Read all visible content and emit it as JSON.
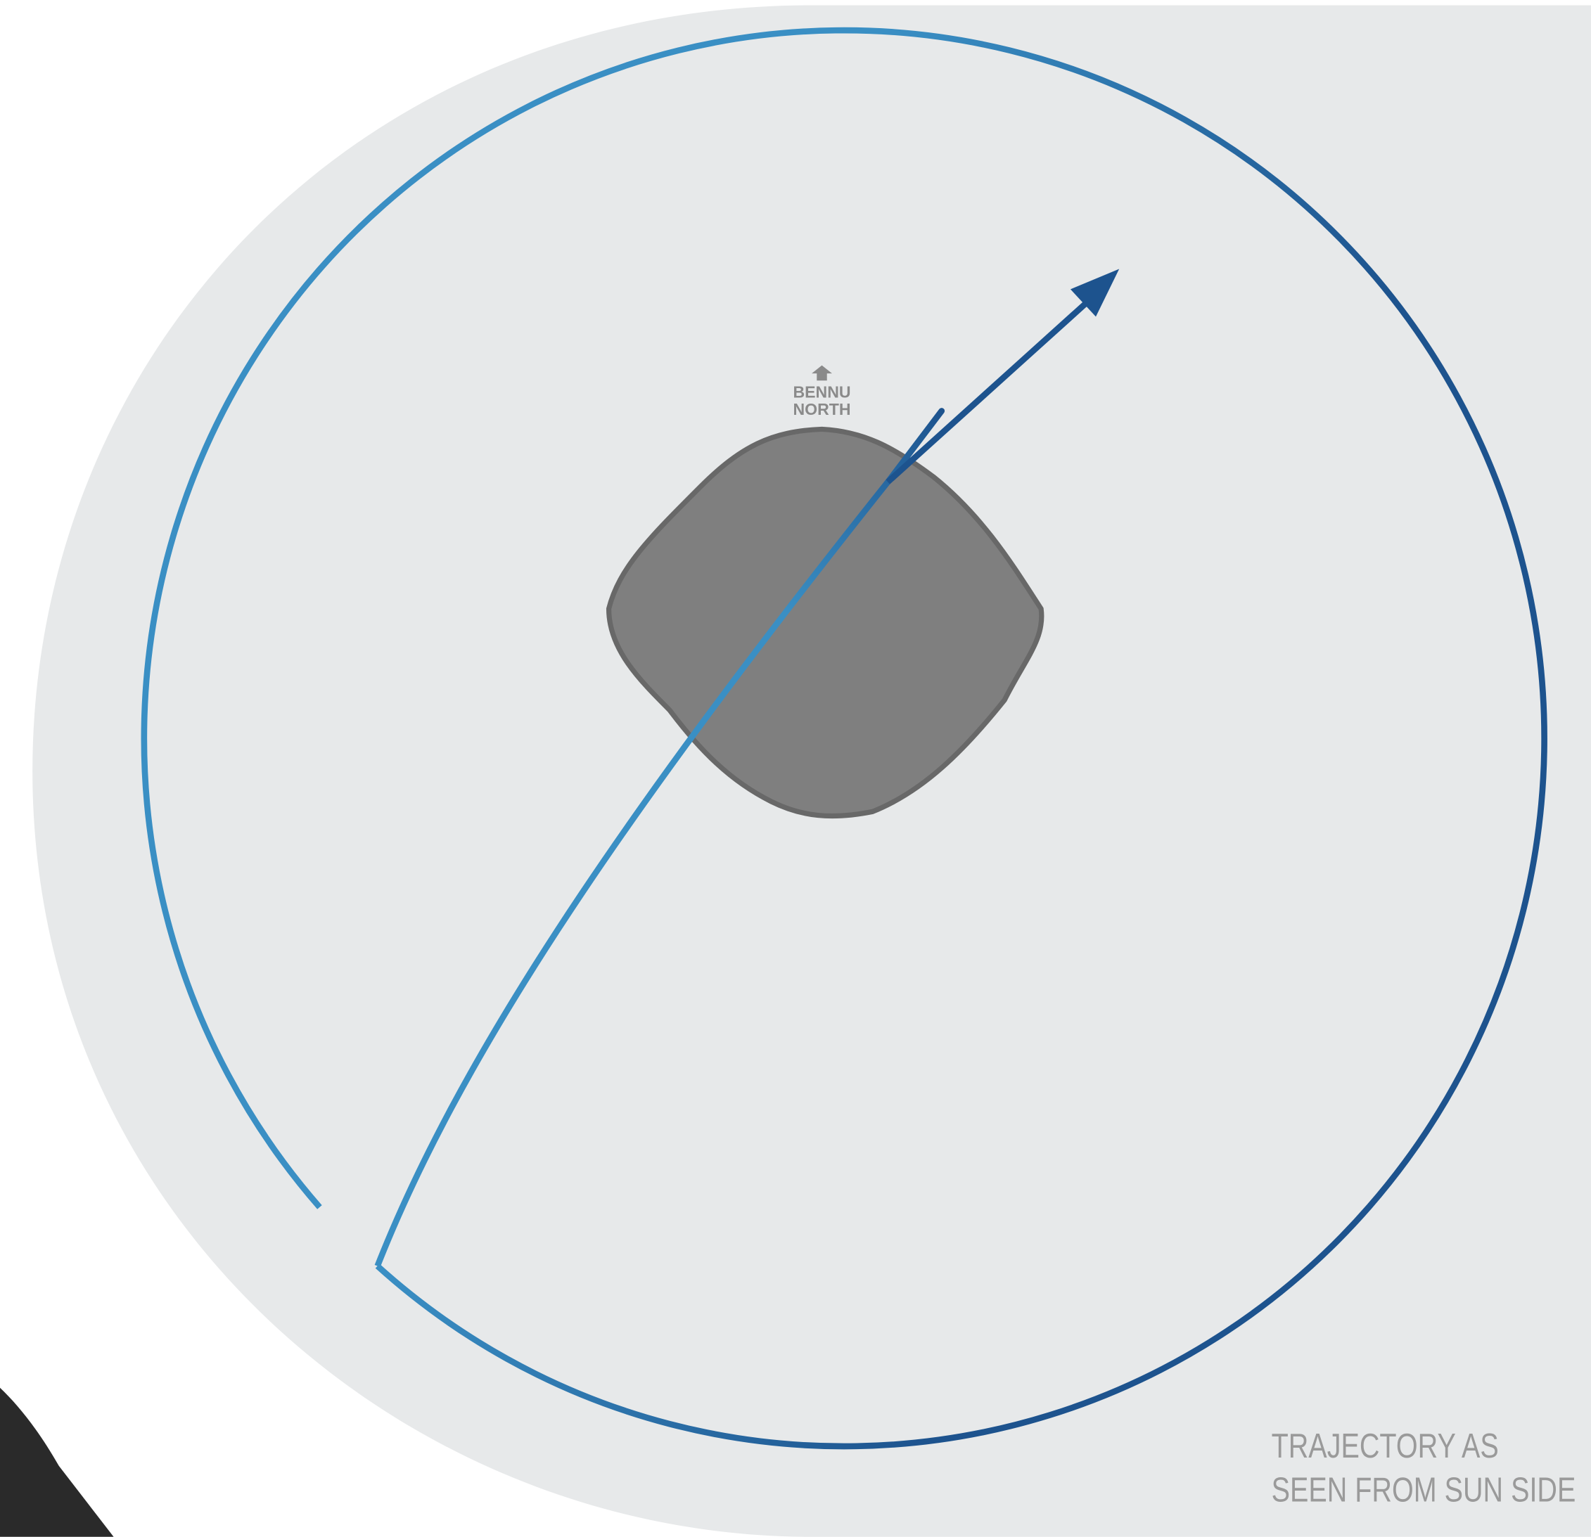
{
  "labels": {
    "north": [
      "BENNU",
      "NORTH"
    ],
    "caption": [
      "TRAJECTORY AS",
      "SEEN FROM SUN SIDE"
    ]
  }
}
